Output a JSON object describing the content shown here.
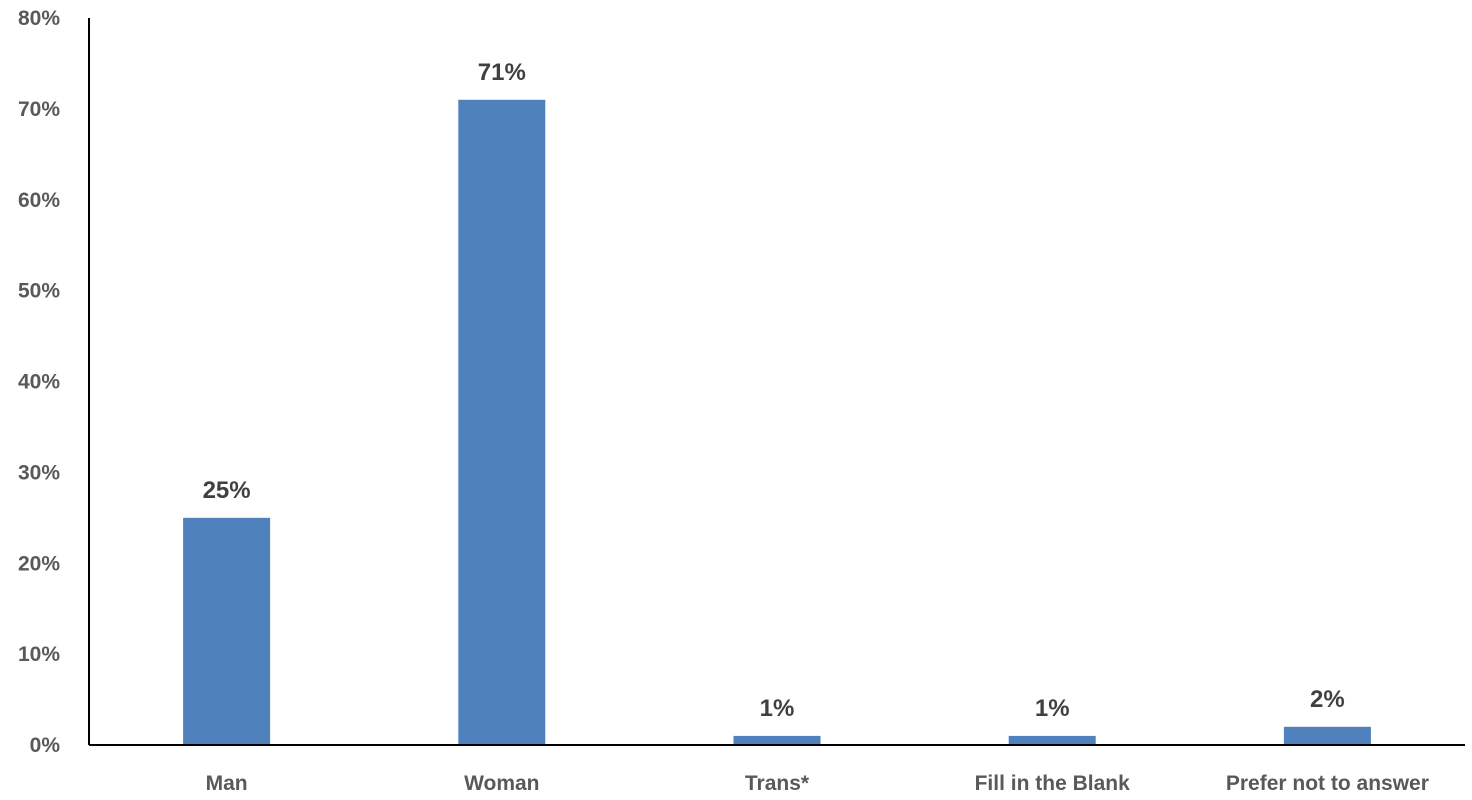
{
  "chart_data": {
    "type": "bar",
    "title": "",
    "xlabel": "",
    "ylabel": "",
    "categories": [
      "Man",
      "Woman",
      "Trans*",
      "Fill in the Blank",
      "Prefer not to answer"
    ],
    "values": [
      25,
      71,
      1,
      1,
      2
    ],
    "value_labels": [
      "25%",
      "71%",
      "1%",
      "1%",
      "2%"
    ],
    "ylim": [
      0,
      80
    ],
    "y_ticks": [
      0,
      10,
      20,
      30,
      40,
      50,
      60,
      70,
      80
    ],
    "y_tick_labels": [
      "0%",
      "10%",
      "20%",
      "30%",
      "40%",
      "50%",
      "60%",
      "70%",
      "80%"
    ],
    "bar_color": "#4f81bd",
    "grid": false,
    "legend": "none"
  }
}
